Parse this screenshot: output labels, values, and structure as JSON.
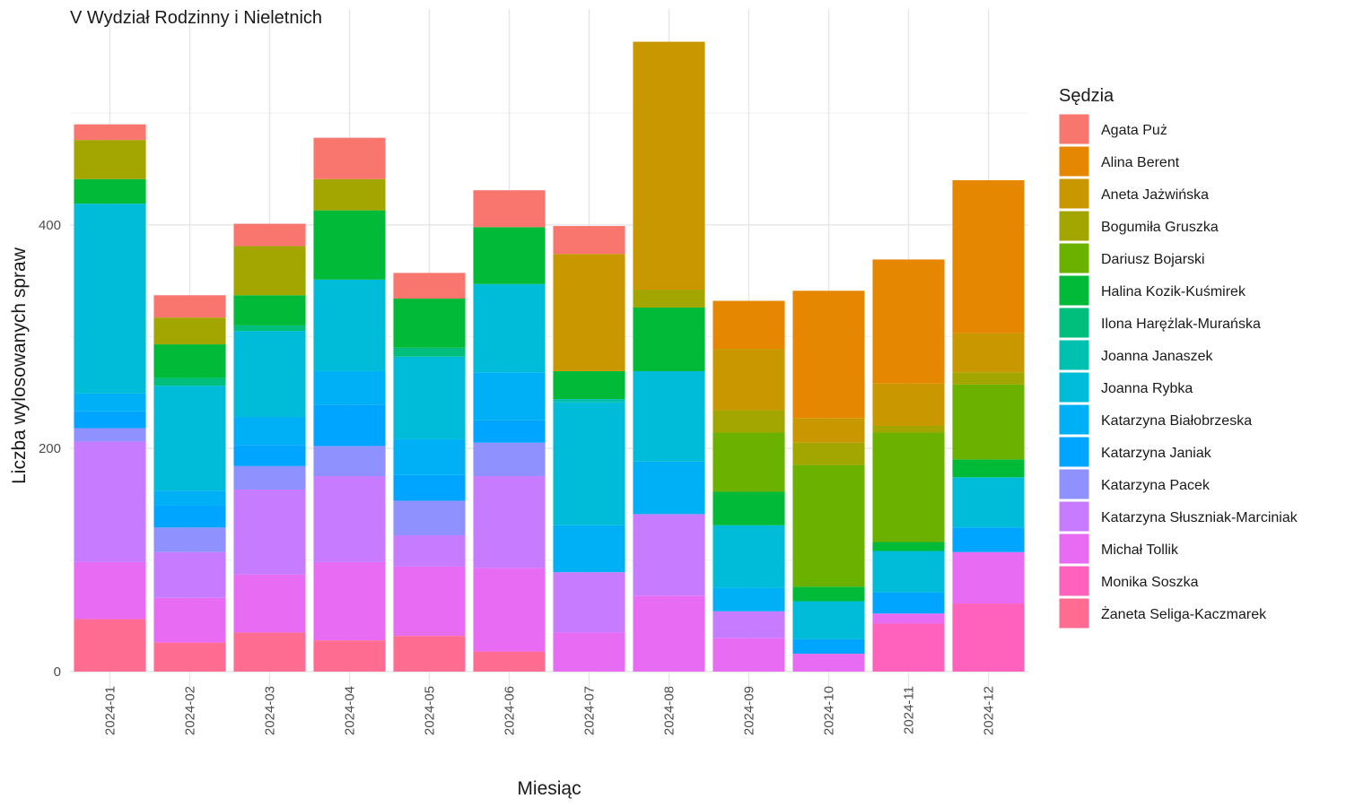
{
  "chart_data": {
    "type": "bar",
    "stacked": true,
    "title": "V Wydział Rodzinny i Nieletnich",
    "xlabel": "Miesiąc",
    "ylabel": "Liczba wylosowanych spraw",
    "ylim": [
      0,
      590
    ],
    "yticks": [
      "0",
      "200",
      "400"
    ],
    "grid": true,
    "legend_title": "Sędzia",
    "legend_position": "right",
    "categories": [
      "2024-01",
      "2024-02",
      "2024-03",
      "2024-04",
      "2024-05",
      "2024-06",
      "2024-07",
      "2024-08",
      "2024-09",
      "2024-10",
      "2024-11",
      "2024-12"
    ],
    "series": [
      {
        "name": "Agata Puż",
        "color": "#F8766D",
        "values": [
          14,
          20,
          20,
          37,
          23,
          33,
          25,
          0,
          0,
          0,
          0,
          0
        ]
      },
      {
        "name": "Alina Berent",
        "color": "#E58700",
        "values": [
          0,
          0,
          0,
          0,
          0,
          0,
          0,
          0,
          43,
          114,
          111,
          137
        ]
      },
      {
        "name": "Aneta Jażwińska",
        "color": "#C99800",
        "values": [
          0,
          0,
          0,
          0,
          0,
          0,
          105,
          222,
          55,
          22,
          38,
          35
        ]
      },
      {
        "name": "Bogumiła Gruszka",
        "color": "#A3A500",
        "values": [
          35,
          24,
          44,
          28,
          0,
          0,
          0,
          16,
          20,
          20,
          6,
          11
        ]
      },
      {
        "name": "Dariusz Bojarski",
        "color": "#6BB100",
        "values": [
          0,
          0,
          0,
          0,
          0,
          0,
          0,
          0,
          53,
          109,
          98,
          67
        ]
      },
      {
        "name": "Halina Kozik-Kuśmirek",
        "color": "#00BA38",
        "values": [
          22,
          30,
          27,
          62,
          44,
          51,
          25,
          57,
          30,
          13,
          8,
          16
        ]
      },
      {
        "name": "Ilona Harężlak-Murańska",
        "color": "#00BF7D",
        "values": [
          0,
          7,
          5,
          0,
          8,
          0,
          0,
          0,
          0,
          0,
          0,
          0
        ]
      },
      {
        "name": "Joanna Janaszek",
        "color": "#00C0AF",
        "values": [
          0,
          0,
          0,
          0,
          0,
          0,
          3,
          0,
          0,
          0,
          0,
          0
        ]
      },
      {
        "name": "Joanna Rybka",
        "color": "#00BCD8",
        "values": [
          170,
          94,
          77,
          82,
          74,
          79,
          110,
          81,
          56,
          34,
          37,
          45
        ]
      },
      {
        "name": "Katarzyna Białobrzeska",
        "color": "#00B0F6",
        "values": [
          16,
          13,
          25,
          30,
          32,
          43,
          42,
          47,
          21,
          0,
          0,
          0
        ]
      },
      {
        "name": "Katarzyna Janiak",
        "color": "#00A5FF",
        "values": [
          15,
          20,
          19,
          37,
          23,
          20,
          0,
          0,
          0,
          13,
          19,
          22
        ]
      },
      {
        "name": "Katarzyna Pacek",
        "color": "#8F91FF",
        "values": [
          12,
          22,
          21,
          27,
          31,
          30,
          0,
          0,
          0,
          0,
          0,
          0
        ]
      },
      {
        "name": "Katarzyna Słuszniak-Marciniak",
        "color": "#C77CFF",
        "values": [
          108,
          41,
          76,
          77,
          28,
          82,
          54,
          73,
          24,
          0,
          0,
          0
        ]
      },
      {
        "name": "Michał Tollik",
        "color": "#E76BF3",
        "values": [
          51,
          40,
          52,
          70,
          62,
          75,
          35,
          68,
          30,
          16,
          9,
          46
        ]
      },
      {
        "name": "Monika Soszka",
        "color": "#FF62BC",
        "values": [
          0,
          0,
          0,
          0,
          0,
          0,
          0,
          0,
          0,
          0,
          43,
          61
        ]
      },
      {
        "name": "Żaneta Seliga-Kaczmarek",
        "color": "#FF6C91",
        "values": [
          47,
          26,
          35,
          28,
          32,
          18,
          0,
          0,
          0,
          0,
          0,
          0
        ]
      }
    ]
  }
}
